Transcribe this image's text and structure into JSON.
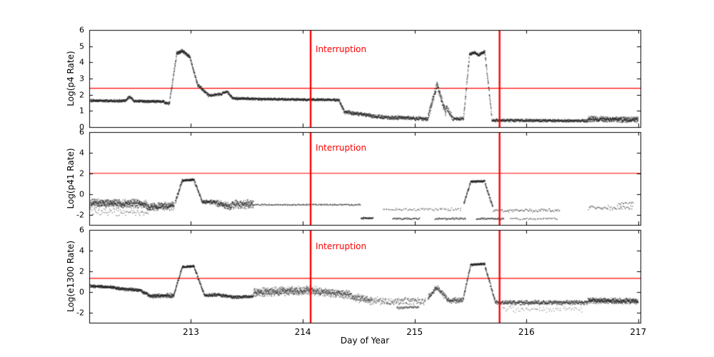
{
  "figure": {
    "xlabel": "Day of Year",
    "annotation_color": "#ff0000",
    "point_color": "#1a1a1a",
    "background": "#ffffff"
  },
  "chart_data": [
    {
      "type": "scatter",
      "ylabel": "Log(p4 Rate)",
      "xlim": [
        212.09,
        217.02
      ],
      "ylim": [
        0,
        6
      ],
      "yticks": [
        0,
        1,
        2,
        3,
        4,
        5,
        6
      ],
      "xticks": [
        213,
        214,
        215,
        216,
        217
      ],
      "show_xtick_labels": false,
      "threshold_y": 2.4,
      "interruptions_x": [
        214.07,
        215.76
      ],
      "annotation": "Interruption",
      "segments": [
        {
          "x0": 212.1,
          "x1": 212.42,
          "y0": 1.63,
          "y1": 1.62,
          "noise": 0.06,
          "n": 300
        },
        {
          "x0": 212.42,
          "x1": 212.45,
          "y0": 1.68,
          "y1": 1.88,
          "noise": 0.07,
          "n": 30
        },
        {
          "x0": 212.45,
          "x1": 212.49,
          "y0": 1.88,
          "y1": 1.64,
          "noise": 0.07,
          "n": 35
        },
        {
          "x0": 212.49,
          "x1": 212.76,
          "y0": 1.6,
          "y1": 1.58,
          "noise": 0.06,
          "n": 260
        },
        {
          "x0": 212.76,
          "x1": 212.81,
          "y0": 1.52,
          "y1": 1.45,
          "noise": 0.07,
          "n": 45
        },
        {
          "x0": 212.81,
          "x1": 212.87,
          "y0": 1.6,
          "y1": 4.4,
          "noise": 0.1,
          "n": 60
        },
        {
          "x0": 212.87,
          "x1": 212.92,
          "y0": 4.55,
          "y1": 4.7,
          "noise": 0.08,
          "n": 60
        },
        {
          "x0": 212.92,
          "x1": 212.99,
          "y0": 4.7,
          "y1": 4.35,
          "noise": 0.08,
          "n": 80
        },
        {
          "x0": 212.99,
          "x1": 213.06,
          "y0": 4.35,
          "y1": 2.6,
          "noise": 0.1,
          "n": 70
        },
        {
          "x0": 213.06,
          "x1": 213.16,
          "y0": 2.6,
          "y1": 1.95,
          "noise": 0.08,
          "n": 90
        },
        {
          "x0": 213.16,
          "x1": 213.28,
          "y0": 1.95,
          "y1": 2.05,
          "noise": 0.07,
          "n": 100
        },
        {
          "x0": 213.28,
          "x1": 213.33,
          "y0": 2.1,
          "y1": 2.2,
          "noise": 0.07,
          "n": 40
        },
        {
          "x0": 213.33,
          "x1": 213.37,
          "y0": 2.15,
          "y1": 1.8,
          "noise": 0.07,
          "n": 40
        },
        {
          "x0": 213.37,
          "x1": 213.62,
          "y0": 1.78,
          "y1": 1.73,
          "noise": 0.06,
          "n": 230
        },
        {
          "x0": 213.62,
          "x1": 214.33,
          "y0": 1.73,
          "y1": 1.67,
          "noise": 0.06,
          "n": 640
        },
        {
          "x0": 214.33,
          "x1": 214.37,
          "y0": 1.55,
          "y1": 1.0,
          "noise": 0.09,
          "n": 40
        },
        {
          "x0": 214.37,
          "x1": 214.62,
          "y0": 0.95,
          "y1": 0.7,
          "noise": 0.09,
          "n": 220
        },
        {
          "x0": 214.62,
          "x1": 215.12,
          "y0": 0.65,
          "y1": 0.5,
          "noise": 0.09,
          "n": 420
        },
        {
          "x0": 215.12,
          "x1": 215.2,
          "y0": 0.6,
          "y1": 2.6,
          "noise": 0.18,
          "n": 90
        },
        {
          "x0": 215.2,
          "x1": 215.28,
          "y0": 2.65,
          "y1": 0.85,
          "noise": 0.18,
          "n": 90
        },
        {
          "x0": 215.28,
          "x1": 215.34,
          "y0": 1.25,
          "y1": 0.6,
          "noise": 0.15,
          "n": 50
        },
        {
          "x0": 215.34,
          "x1": 215.44,
          "y0": 0.52,
          "y1": 0.52,
          "noise": 0.08,
          "n": 80
        },
        {
          "x0": 215.44,
          "x1": 215.49,
          "y0": 0.7,
          "y1": 4.4,
          "noise": 0.12,
          "n": 55
        },
        {
          "x0": 215.49,
          "x1": 215.54,
          "y0": 4.5,
          "y1": 4.62,
          "noise": 0.07,
          "n": 55
        },
        {
          "x0": 215.54,
          "x1": 215.58,
          "y0": 4.6,
          "y1": 4.42,
          "noise": 0.07,
          "n": 45
        },
        {
          "x0": 215.58,
          "x1": 215.63,
          "y0": 4.5,
          "y1": 4.65,
          "noise": 0.07,
          "n": 55
        },
        {
          "x0": 215.63,
          "x1": 215.69,
          "y0": 4.55,
          "y1": 0.65,
          "noise": 0.12,
          "n": 60
        },
        {
          "x0": 215.69,
          "x1": 216.55,
          "y0": 0.42,
          "y1": 0.38,
          "noise": 0.07,
          "n": 700
        },
        {
          "x0": 216.55,
          "x1": 217.0,
          "y0": 0.5,
          "y1": 0.45,
          "noise": 0.13,
          "n": 500
        }
      ]
    },
    {
      "type": "scatter",
      "ylabel": "Log(p41 Rate)",
      "xlim": [
        212.09,
        217.02
      ],
      "ylim": [
        -3,
        6
      ],
      "yticks": [
        -2,
        0,
        2,
        4,
        6
      ],
      "xticks": [
        213,
        214,
        215,
        216,
        217
      ],
      "show_xtick_labels": false,
      "threshold_y": 2.0,
      "interruptions_x": [
        214.07,
        215.76
      ],
      "annotation": "Interruption",
      "segments": [
        {
          "x0": 212.1,
          "x1": 212.6,
          "y0": -0.9,
          "y1": -0.95,
          "noise": 0.3,
          "n": 550
        },
        {
          "x0": 212.1,
          "x1": 212.62,
          "y0": -1.75,
          "y1": -1.8,
          "noise": 0.25,
          "n": 70,
          "a": 0.5
        },
        {
          "x0": 212.6,
          "x1": 212.85,
          "y0": -1.25,
          "y1": -1.15,
          "noise": 0.28,
          "n": 280
        },
        {
          "x0": 212.86,
          "x1": 212.92,
          "y0": -0.8,
          "y1": 1.2,
          "noise": 0.15,
          "n": 60
        },
        {
          "x0": 212.92,
          "x1": 213.03,
          "y0": 1.3,
          "y1": 1.38,
          "noise": 0.08,
          "n": 120
        },
        {
          "x0": 213.03,
          "x1": 213.1,
          "y0": 1.25,
          "y1": -0.7,
          "noise": 0.15,
          "n": 60
        },
        {
          "x0": 213.1,
          "x1": 213.23,
          "y0": -0.75,
          "y1": -0.82,
          "noise": 0.16,
          "n": 120
        },
        {
          "x0": 213.23,
          "x1": 213.36,
          "y0": -0.9,
          "y1": -1.25,
          "noise": 0.25,
          "n": 130
        },
        {
          "x0": 213.36,
          "x1": 213.56,
          "y0": -1.0,
          "y1": -1.0,
          "noise": 0.3,
          "n": 190
        },
        {
          "x0": 213.56,
          "x1": 214.52,
          "y0": -1.05,
          "y1": -1.05,
          "noise": 0.05,
          "n": 150,
          "a": 0.7
        },
        {
          "x0": 214.52,
          "x1": 214.63,
          "y0": -2.35,
          "y1": -2.35,
          "noise": 0.07,
          "n": 45,
          "a": 0.7
        },
        {
          "x0": 214.72,
          "x1": 215.42,
          "y0": -1.5,
          "y1": -1.5,
          "noise": 0.1,
          "n": 70,
          "a": 0.6
        },
        {
          "x0": 214.8,
          "x1": 215.05,
          "y0": -2.4,
          "y1": -2.4,
          "noise": 0.07,
          "n": 50,
          "a": 0.7
        },
        {
          "x0": 215.18,
          "x1": 215.46,
          "y0": -2.4,
          "y1": -2.4,
          "noise": 0.07,
          "n": 55,
          "a": 0.7
        },
        {
          "x0": 215.44,
          "x1": 215.5,
          "y0": -1.0,
          "y1": 1.1,
          "noise": 0.14,
          "n": 55
        },
        {
          "x0": 215.5,
          "x1": 215.63,
          "y0": 1.18,
          "y1": 1.25,
          "noise": 0.08,
          "n": 120
        },
        {
          "x0": 215.63,
          "x1": 215.7,
          "y0": 1.05,
          "y1": -1.3,
          "noise": 0.16,
          "n": 60
        },
        {
          "x0": 215.55,
          "x1": 215.8,
          "y0": -2.4,
          "y1": -2.4,
          "noise": 0.07,
          "n": 55,
          "a": 0.7
        },
        {
          "x0": 215.7,
          "x1": 216.3,
          "y0": -1.6,
          "y1": -1.6,
          "noise": 0.12,
          "n": 85,
          "a": 0.6
        },
        {
          "x0": 215.85,
          "x1": 216.28,
          "y0": -2.4,
          "y1": -2.4,
          "noise": 0.07,
          "n": 45,
          "a": 0.6
        },
        {
          "x0": 216.55,
          "x1": 216.95,
          "y0": -1.35,
          "y1": -1.3,
          "noise": 0.15,
          "n": 55,
          "a": 0.6
        },
        {
          "x0": 216.82,
          "x1": 216.96,
          "y0": -0.9,
          "y1": -0.85,
          "noise": 0.1,
          "n": 15,
          "a": 0.6
        }
      ]
    },
    {
      "type": "scatter",
      "ylabel": "Log(e1300 Rate)",
      "xlim": [
        212.09,
        217.02
      ],
      "ylim": [
        -3,
        6
      ],
      "yticks": [
        -2,
        0,
        2,
        4,
        6
      ],
      "xticks": [
        213,
        214,
        215,
        216,
        217
      ],
      "show_xtick_labels": true,
      "threshold_y": 1.3,
      "interruptions_x": [
        214.07,
        215.76
      ],
      "annotation": "Interruption",
      "segments": [
        {
          "x0": 212.1,
          "x1": 212.32,
          "y0": 0.55,
          "y1": 0.42,
          "noise": 0.1,
          "n": 240
        },
        {
          "x0": 212.32,
          "x1": 212.56,
          "y0": 0.35,
          "y1": 0.12,
          "noise": 0.12,
          "n": 250
        },
        {
          "x0": 212.56,
          "x1": 212.63,
          "y0": 0.0,
          "y1": -0.35,
          "noise": 0.12,
          "n": 70
        },
        {
          "x0": 212.63,
          "x1": 212.85,
          "y0": -0.42,
          "y1": -0.35,
          "noise": 0.15,
          "n": 230
        },
        {
          "x0": 212.85,
          "x1": 212.92,
          "y0": -0.2,
          "y1": 2.3,
          "noise": 0.12,
          "n": 70
        },
        {
          "x0": 212.92,
          "x1": 213.03,
          "y0": 2.4,
          "y1": 2.48,
          "noise": 0.08,
          "n": 120
        },
        {
          "x0": 213.03,
          "x1": 213.12,
          "y0": 2.35,
          "y1": -0.3,
          "noise": 0.13,
          "n": 80
        },
        {
          "x0": 213.12,
          "x1": 213.25,
          "y0": -0.4,
          "y1": -0.25,
          "noise": 0.13,
          "n": 120
        },
        {
          "x0": 213.25,
          "x1": 213.39,
          "y0": -0.3,
          "y1": -0.52,
          "noise": 0.13,
          "n": 130
        },
        {
          "x0": 213.39,
          "x1": 213.56,
          "y0": -0.52,
          "y1": -0.45,
          "noise": 0.11,
          "n": 150
        },
        {
          "x0": 213.56,
          "x1": 214.08,
          "y0": -0.05,
          "y1": 0.15,
          "noise": 0.3,
          "n": 650,
          "a": 0.4
        },
        {
          "x0": 214.08,
          "x1": 214.42,
          "y0": 0.1,
          "y1": -0.3,
          "noise": 0.3,
          "n": 380,
          "a": 0.4
        },
        {
          "x0": 214.42,
          "x1": 214.62,
          "y0": -0.45,
          "y1": -0.85,
          "noise": 0.28,
          "n": 160,
          "a": 0.45
        },
        {
          "x0": 214.62,
          "x1": 215.1,
          "y0": -0.9,
          "y1": -0.9,
          "noise": 0.28,
          "n": 200,
          "a": 0.45
        },
        {
          "x0": 214.84,
          "x1": 215.04,
          "y0": -1.55,
          "y1": -1.5,
          "noise": 0.1,
          "n": 60,
          "a": 0.55
        },
        {
          "x0": 215.12,
          "x1": 215.2,
          "y0": -0.6,
          "y1": 0.45,
          "noise": 0.2,
          "n": 70,
          "a": 0.5
        },
        {
          "x0": 215.2,
          "x1": 215.29,
          "y0": 0.45,
          "y1": -0.7,
          "noise": 0.2,
          "n": 70,
          "a": 0.5
        },
        {
          "x0": 215.29,
          "x1": 215.44,
          "y0": -0.85,
          "y1": -0.8,
          "noise": 0.18,
          "n": 110
        },
        {
          "x0": 215.44,
          "x1": 215.5,
          "y0": -0.4,
          "y1": 2.5,
          "noise": 0.13,
          "n": 60
        },
        {
          "x0": 215.5,
          "x1": 215.63,
          "y0": 2.62,
          "y1": 2.7,
          "noise": 0.08,
          "n": 120
        },
        {
          "x0": 215.63,
          "x1": 215.72,
          "y0": 2.5,
          "y1": -0.9,
          "noise": 0.15,
          "n": 80
        },
        {
          "x0": 215.72,
          "x1": 216.55,
          "y0": -1.05,
          "y1": -1.05,
          "noise": 0.16,
          "n": 550
        },
        {
          "x0": 215.78,
          "x1": 216.5,
          "y0": -1.7,
          "y1": -1.7,
          "noise": 0.22,
          "n": 70,
          "a": 0.4
        },
        {
          "x0": 216.55,
          "x1": 217.0,
          "y0": -0.85,
          "y1": -0.92,
          "noise": 0.2,
          "n": 480
        }
      ]
    }
  ]
}
